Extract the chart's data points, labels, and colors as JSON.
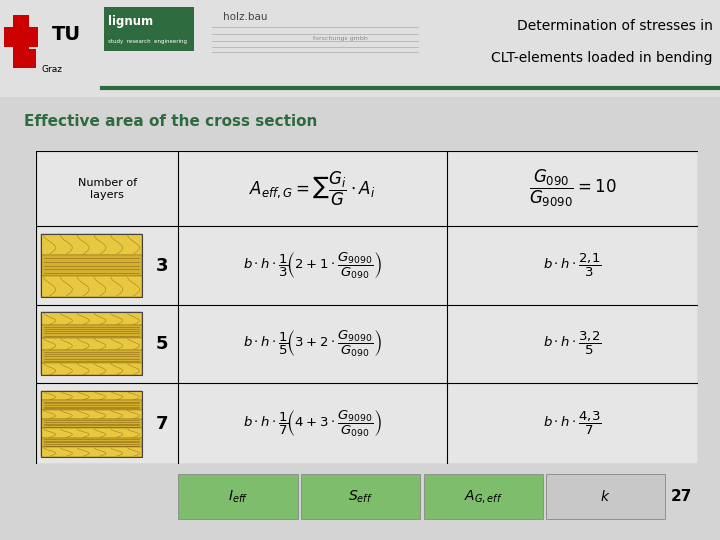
{
  "title_line1": "Determination of stresses in",
  "title_line2": "CLT-elements loaded in bending",
  "subtitle": "Effective area of the cross section",
  "bg_color": "#d4d4d4",
  "tab_green": "#7dbd6c",
  "dark_green": "#2e6b3e",
  "page_num": "27",
  "row_numbers": [
    "3",
    "5",
    "7"
  ],
  "col0": 0.0,
  "col1": 0.215,
  "col2": 0.62,
  "col3": 1.0,
  "row0": 1.0,
  "row1": 0.76,
  "row2": 0.51,
  "row3": 0.26,
  "row4": 0.0
}
